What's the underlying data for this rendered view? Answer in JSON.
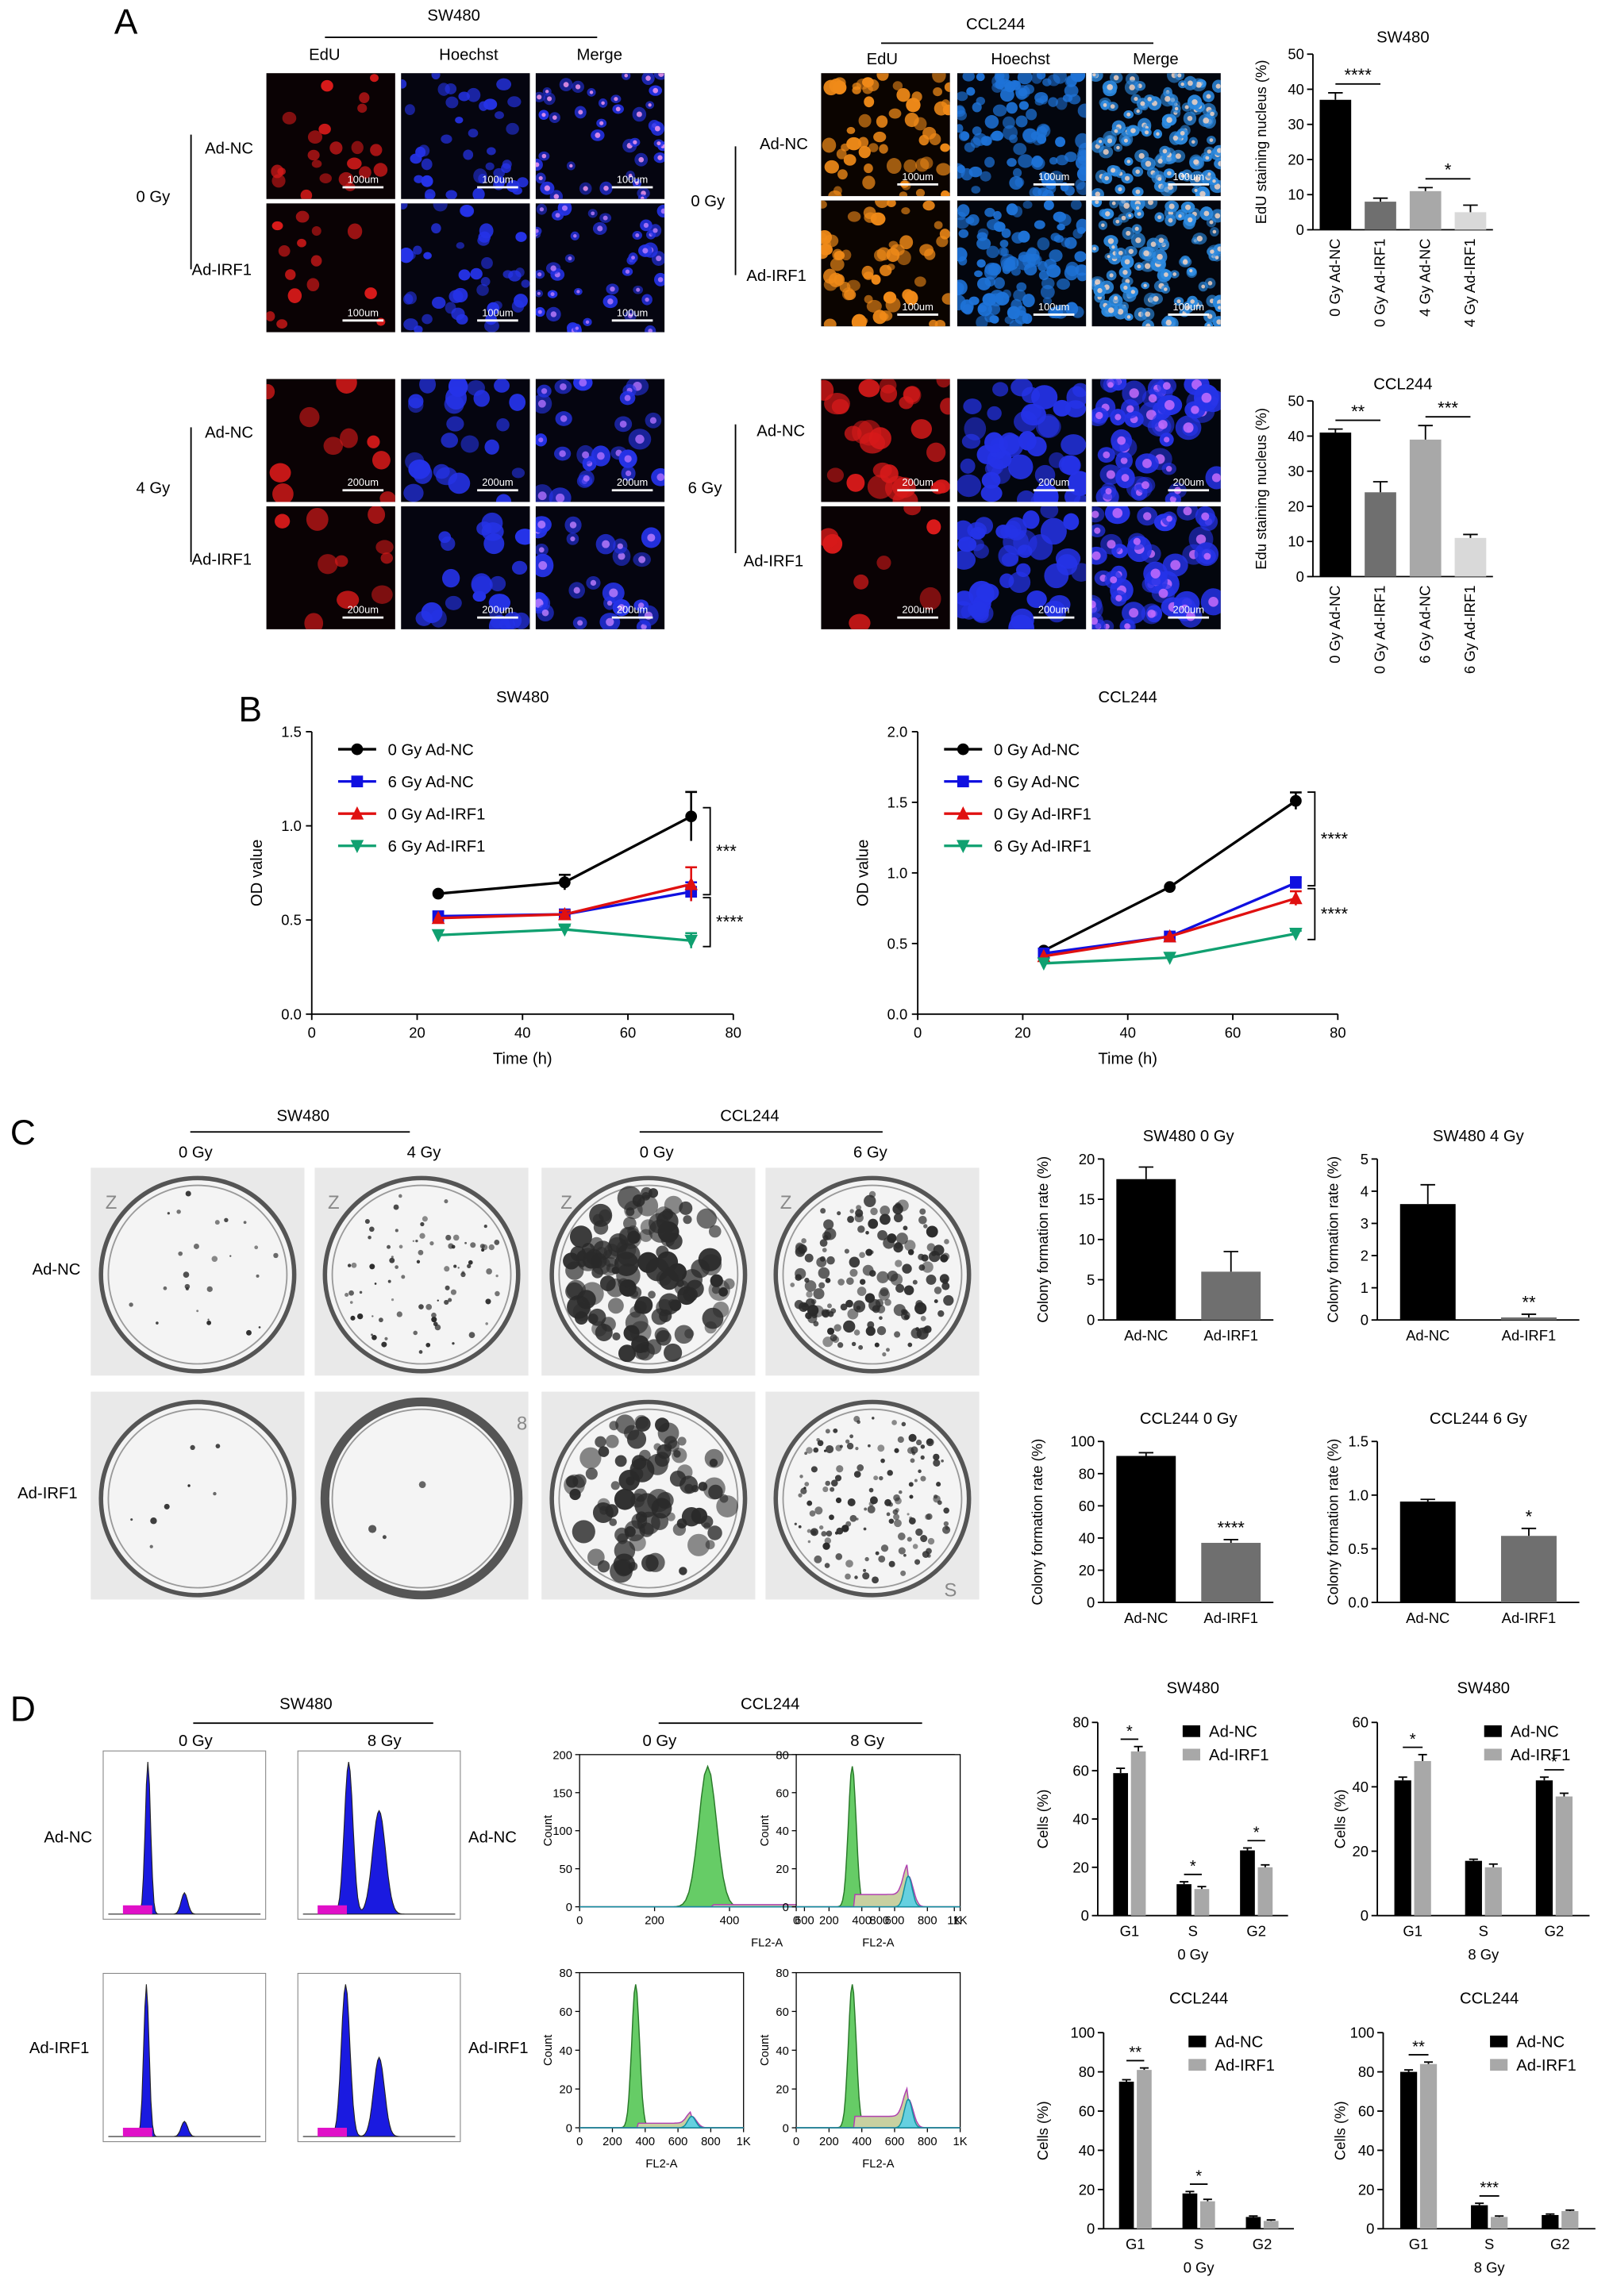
{
  "panels": {
    "A": "A",
    "B": "B",
    "C": "C",
    "D": "D"
  },
  "colors": {
    "edu_sw480": "#d81a1a",
    "edu_ccl244": "#f08a18",
    "hoechst_sw480": "#2533e8",
    "hoechst_ccl244": "#1e73d8",
    "merge_ccl244": "#ffd8c0",
    "black": "#000000",
    "dark_gray": "#6f6f6f",
    "light_gray": "#a8a8a8",
    "pale_gray": "#d9d9d9",
    "series_blue": "#1010e0",
    "series_red": "#e01010",
    "series_green": "#10a070",
    "hist_blue": "#1a1ae0",
    "hist_magenta": "#e010c8",
    "hist_green": "#66cc66"
  },
  "A": {
    "sw480": "SW480",
    "ccl244": "CCL244",
    "cols": [
      "EdU",
      "Hoechst",
      "Merge"
    ],
    "dose_0": "0 Gy",
    "dose_4": "4 Gy",
    "dose_6": "6 Gy",
    "ad_nc": "Ad-NC",
    "ad_irf1": "Ad-IRF1",
    "scale_100": "100um",
    "scale_200": "200um"
  },
  "B": {
    "sw480": "SW480",
    "ccl244": "CCL244"
  },
  "C": {
    "sw480": "SW480",
    "ccl244": "CCL244",
    "doses": [
      "0 Gy",
      "4 Gy",
      "0 Gy",
      "6 Gy"
    ],
    "rows": [
      "Ad-NC",
      "Ad-IRF1"
    ],
    "plate_marks": [
      "Z",
      "Z",
      "Z",
      "Z",
      "8",
      "S"
    ]
  },
  "D": {
    "sw480": "SW480",
    "ccl244": "CCL244",
    "doses": [
      "0 Gy",
      "8 Gy",
      "0 Gy",
      "8 Gy"
    ],
    "rows_left": [
      "Ad-NC",
      "Ad-IRF1"
    ],
    "rows_mid": [
      "Ad-NC",
      "Ad-IRF1"
    ],
    "fl2": "FL2-A",
    "count": "Count",
    "flow_ticks_y1": [
      "200",
      "150",
      "100",
      "50",
      "0"
    ],
    "flow_ticks_y2": [
      "80",
      "60",
      "40",
      "20",
      "0"
    ],
    "flow_ticks_x": [
      "0",
      "200",
      "400",
      "600",
      "800",
      "1K"
    ]
  },
  "chart_data": [
    {
      "id": "A_sw480",
      "type": "bar",
      "title": "SW480",
      "ylabel": "EdU staining nucleus (%)",
      "ylim": [
        0,
        50
      ],
      "yticks": [
        0,
        10,
        20,
        30,
        40,
        50
      ],
      "categories": [
        "0 Gy Ad-NC",
        "0 Gy Ad-IRF1",
        "4 Gy Ad-NC",
        "4 Gy Ad-IRF1"
      ],
      "values": [
        37,
        8,
        11,
        5
      ],
      "errors": [
        2,
        1,
        1,
        2
      ],
      "colors": [
        "#000000",
        "#6f6f6f",
        "#a8a8a8",
        "#d9d9d9"
      ],
      "annotations": [
        {
          "label": "****",
          "from": 0,
          "to": 1
        },
        {
          "label": "*",
          "from": 2,
          "to": 3
        }
      ]
    },
    {
      "id": "A_ccl244",
      "type": "bar",
      "title": "CCL244",
      "ylabel": "Edu staining nucleus (%)",
      "ylim": [
        0,
        50
      ],
      "yticks": [
        0,
        10,
        20,
        30,
        40,
        50
      ],
      "categories": [
        "0 Gy Ad-NC",
        "0 Gy Ad-IRF1",
        "6 Gy Ad-NC",
        "6 Gy Ad-IRF1"
      ],
      "values": [
        41,
        24,
        39,
        11
      ],
      "errors": [
        1,
        3,
        4,
        1
      ],
      "colors": [
        "#000000",
        "#6f6f6f",
        "#a8a8a8",
        "#d9d9d9"
      ],
      "annotations": [
        {
          "label": "**",
          "from": 0,
          "to": 1
        },
        {
          "label": "***",
          "from": 2,
          "to": 3
        }
      ]
    },
    {
      "id": "B_sw480",
      "type": "line",
      "title": "SW480",
      "xlabel": "Time (h)",
      "ylabel": "OD value",
      "xlim": [
        0,
        80
      ],
      "ylim": [
        0,
        1.5
      ],
      "xticks": [
        0,
        20,
        40,
        60,
        80
      ],
      "yticks": [
        "0.0",
        "0.5",
        "1.0",
        "1.5"
      ],
      "x": [
        24,
        48,
        72
      ],
      "series": [
        {
          "name": "0 Gy Ad-NC",
          "values": [
            0.64,
            0.7,
            1.05
          ],
          "errors": [
            0,
            0.04,
            0.13
          ],
          "color": "#000000",
          "marker": "circle"
        },
        {
          "name": "6 Gy Ad-NC",
          "values": [
            0.52,
            0.53,
            0.65
          ],
          "errors": [
            0,
            0.02,
            0.05
          ],
          "color": "#1010e0",
          "marker": "square"
        },
        {
          "name": "0 Gy Ad-IRF1",
          "values": [
            0.51,
            0.53,
            0.69
          ],
          "errors": [
            0,
            0.02,
            0.09
          ],
          "color": "#e01010",
          "marker": "triangle"
        },
        {
          "name": "6 Gy Ad-IRF1",
          "values": [
            0.42,
            0.45,
            0.39
          ],
          "errors": [
            0,
            0.02,
            0.04
          ],
          "color": "#10a070",
          "marker": "triangle-down"
        }
      ],
      "annotations": [
        "***",
        "****"
      ]
    },
    {
      "id": "B_ccl244",
      "type": "line",
      "title": "CCL244",
      "xlabel": "Time (h)",
      "ylabel": "OD value",
      "xlim": [
        0,
        80
      ],
      "ylim": [
        0,
        2.0
      ],
      "xticks": [
        0,
        20,
        40,
        60,
        80
      ],
      "yticks": [
        "0.0",
        "0.5",
        "1.0",
        "1.5",
        "2.0"
      ],
      "x": [
        24,
        48,
        72
      ],
      "series": [
        {
          "name": "0 Gy Ad-NC",
          "values": [
            0.45,
            0.9,
            1.51
          ],
          "errors": [
            0,
            0,
            0.06
          ],
          "color": "#000000",
          "marker": "circle"
        },
        {
          "name": "6 Gy Ad-NC",
          "values": [
            0.43,
            0.55,
            0.93
          ],
          "errors": [
            0,
            0,
            0.04
          ],
          "color": "#1010e0",
          "marker": "square"
        },
        {
          "name": "0 Gy Ad-IRF1",
          "values": [
            0.41,
            0.55,
            0.82
          ],
          "errors": [
            0,
            0,
            0.05
          ],
          "color": "#e01010",
          "marker": "triangle"
        },
        {
          "name": "6 Gy Ad-IRF1",
          "values": [
            0.36,
            0.4,
            0.57
          ],
          "errors": [
            0,
            0,
            0.02
          ],
          "color": "#10a070",
          "marker": "triangle-down"
        }
      ],
      "annotations": [
        "****",
        "****"
      ]
    },
    {
      "id": "C_sw480_0",
      "type": "bar",
      "title": "SW480 0 Gy",
      "ylabel": "Colony formation rate (%)",
      "ylim": [
        0,
        20
      ],
      "yticks": [
        0,
        5,
        10,
        15,
        20
      ],
      "categories": [
        "Ad-NC",
        "Ad-IRF1"
      ],
      "values": [
        17.5,
        6
      ],
      "errors": [
        1.5,
        2.5
      ],
      "colors": [
        "#000000",
        "#6f6f6f"
      ],
      "annotations": []
    },
    {
      "id": "C_sw480_4",
      "type": "bar",
      "title": "SW480 4 Gy",
      "ylabel": "Colony formation rate (%)",
      "ylim": [
        0,
        5
      ],
      "yticks": [
        0,
        1,
        2,
        3,
        4,
        5
      ],
      "categories": [
        "Ad-NC",
        "Ad-IRF1"
      ],
      "values": [
        3.6,
        0.08
      ],
      "errors": [
        0.6,
        0.1
      ],
      "colors": [
        "#000000",
        "#6f6f6f"
      ],
      "annotations": [
        {
          "label": "**",
          "bar": 1
        }
      ]
    },
    {
      "id": "C_ccl244_0",
      "type": "bar",
      "title": "CCL244 0 Gy",
      "ylabel": "Colony formation rate (%)",
      "ylim": [
        0,
        100
      ],
      "yticks": [
        0,
        20,
        40,
        60,
        80,
        100
      ],
      "categories": [
        "Ad-NC",
        "Ad-IRF1"
      ],
      "values": [
        91,
        37
      ],
      "errors": [
        2,
        2
      ],
      "colors": [
        "#000000",
        "#6f6f6f"
      ],
      "annotations": [
        {
          "label": "****",
          "bar": 1
        }
      ]
    },
    {
      "id": "C_ccl244_6",
      "type": "bar",
      "title": "CCL244 6 Gy",
      "ylabel": "Colony formation rate (%)",
      "ylim": [
        0,
        1.5
      ],
      "yticks": [
        "0.0",
        "0.5",
        "1.0",
        "1.5"
      ],
      "categories": [
        "Ad-NC",
        "Ad-IRF1"
      ],
      "values": [
        0.94,
        0.62
      ],
      "errors": [
        0.02,
        0.07
      ],
      "colors": [
        "#000000",
        "#6f6f6f"
      ],
      "annotations": [
        {
          "label": "*",
          "bar": 1
        }
      ]
    },
    {
      "id": "D_sw480_0",
      "type": "bar",
      "title": "SW480",
      "subtitle": "0 Gy",
      "ylabel": "Cells (%)",
      "ylim": [
        0,
        80
      ],
      "yticks": [
        0,
        20,
        40,
        60,
        80
      ],
      "categories": [
        "G1",
        "S",
        "G2"
      ],
      "series": [
        {
          "name": "Ad-NC",
          "values": [
            59,
            13,
            27
          ],
          "errors": [
            2,
            1,
            1
          ],
          "color": "#000000"
        },
        {
          "name": "Ad-IRF1",
          "values": [
            68,
            11,
            20
          ],
          "errors": [
            2,
            1,
            1
          ],
          "color": "#a8a8a8"
        }
      ],
      "annotations": [
        "*",
        "*",
        "*"
      ]
    },
    {
      "id": "D_sw480_8",
      "type": "bar",
      "title": "SW480",
      "subtitle": "8 Gy",
      "ylabel": "Cells (%)",
      "ylim": [
        0,
        60
      ],
      "yticks": [
        0,
        20,
        40,
        60
      ],
      "categories": [
        "G1",
        "S",
        "G2"
      ],
      "series": [
        {
          "name": "Ad-NC",
          "values": [
            42,
            17,
            42
          ],
          "errors": [
            1,
            0.5,
            1
          ],
          "color": "#000000"
        },
        {
          "name": "Ad-IRF1",
          "values": [
            48,
            15,
            37
          ],
          "errors": [
            2,
            1,
            1
          ],
          "color": "#a8a8a8"
        }
      ],
      "annotations": [
        "*",
        "",
        "*"
      ]
    },
    {
      "id": "D_ccl244_0",
      "type": "bar",
      "title": "CCL244",
      "subtitle": "0 Gy",
      "ylabel": "Cells (%)",
      "ylim": [
        0,
        100
      ],
      "yticks": [
        0,
        20,
        40,
        60,
        80,
        100
      ],
      "categories": [
        "G1",
        "S",
        "G2"
      ],
      "series": [
        {
          "name": "Ad-NC",
          "values": [
            75,
            18,
            6
          ],
          "errors": [
            1,
            1,
            0.5
          ],
          "color": "#000000"
        },
        {
          "name": "Ad-IRF1",
          "values": [
            81,
            14,
            4
          ],
          "errors": [
            1,
            1,
            0.5
          ],
          "color": "#a8a8a8"
        }
      ],
      "annotations": [
        "**",
        "*",
        ""
      ]
    },
    {
      "id": "D_ccl244_8",
      "type": "bar",
      "title": "CCL244",
      "subtitle": "8 Gy",
      "ylabel": "Cells (%)",
      "ylim": [
        0,
        100
      ],
      "yticks": [
        0,
        20,
        40,
        60,
        80,
        100
      ],
      "categories": [
        "G1",
        "S",
        "G2"
      ],
      "series": [
        {
          "name": "Ad-NC",
          "values": [
            80,
            12,
            7
          ],
          "errors": [
            1,
            1,
            0.5
          ],
          "color": "#000000"
        },
        {
          "name": "Ad-IRF1",
          "values": [
            84,
            6,
            9
          ],
          "errors": [
            1,
            0.5,
            0.5
          ],
          "color": "#a8a8a8"
        }
      ],
      "annotations": [
        "**",
        "***",
        ""
      ]
    }
  ]
}
